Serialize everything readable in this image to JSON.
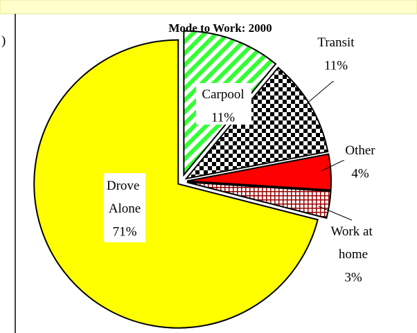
{
  "edge_text": ")",
  "chart_data": {
    "type": "pie",
    "title": "Mode to Work: 2000",
    "categories": [
      "Carpool",
      "Transit",
      "Other",
      "Work at home",
      "Drove Alone"
    ],
    "values": [
      11,
      11,
      4,
      3,
      71
    ],
    "value_labels": [
      "11%",
      "11%",
      "4%",
      "3%",
      "71%"
    ],
    "colors": [
      "#33ff33",
      "#000000",
      "#ff0000",
      "#990000",
      "#ffff00"
    ],
    "patterns": [
      "stripes",
      "checker",
      "solid",
      "grid",
      "solid"
    ]
  }
}
